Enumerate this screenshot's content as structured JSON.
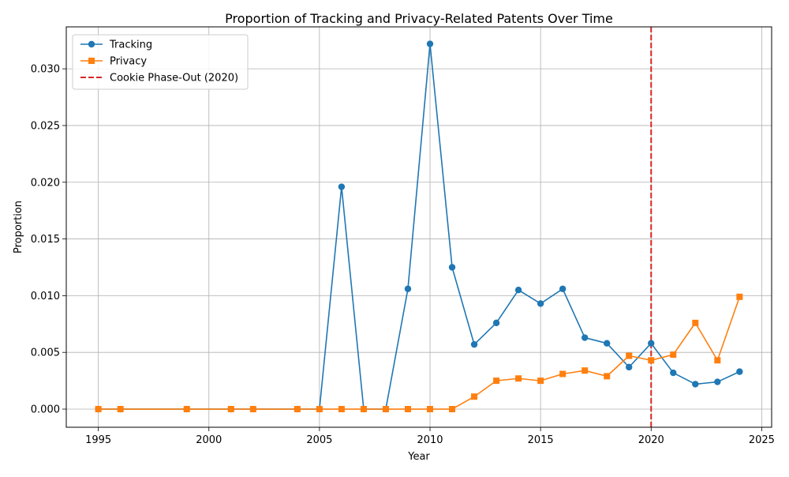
{
  "chart_data": {
    "type": "line",
    "title": "Proportion of Tracking and Privacy-Related Patents Over Time",
    "xlabel": "Year",
    "ylabel": "Proportion",
    "xlim": [
      1993.55,
      2025.45
    ],
    "ylim": [
      -0.0016,
      0.0337
    ],
    "xticks": [
      1995,
      2000,
      2005,
      2010,
      2015,
      2020,
      2025
    ],
    "xtick_labels": [
      "1995",
      "2000",
      "2005",
      "2010",
      "2015",
      "2020",
      "2025"
    ],
    "yticks": [
      0.0,
      0.005,
      0.01,
      0.015,
      0.02,
      0.025,
      0.03
    ],
    "ytick_labels": [
      "0.000",
      "0.005",
      "0.010",
      "0.015",
      "0.020",
      "0.025",
      "0.030"
    ],
    "grid": true,
    "legend_position": "top-left",
    "x": [
      1995,
      1996,
      1999,
      2001,
      2002,
      2004,
      2005,
      2006,
      2007,
      2008,
      2009,
      2010,
      2011,
      2012,
      2013,
      2014,
      2015,
      2016,
      2017,
      2018,
      2019,
      2020,
      2021,
      2022,
      2023,
      2024
    ],
    "series": [
      {
        "name": "Tracking",
        "color": "#1f77b4",
        "marker": "circle",
        "values": [
          0,
          0,
          0,
          0,
          0,
          0,
          0,
          0.0196,
          0,
          0,
          0.0106,
          0.0322,
          0.0125,
          0.0057,
          0.0076,
          0.0105,
          0.0093,
          0.0106,
          0.0063,
          0.0058,
          0.0037,
          0.0058,
          0.0032,
          0.0022,
          0.0024,
          0.0033
        ]
      },
      {
        "name": "Privacy",
        "color": "#ff7f0e",
        "marker": "square",
        "values": [
          0,
          0,
          0,
          0,
          0,
          0,
          0,
          0,
          0,
          0,
          0,
          0,
          0,
          0.0011,
          0.0025,
          0.0027,
          0.0025,
          0.0031,
          0.0034,
          0.0029,
          0.0047,
          0.0043,
          0.0048,
          0.0076,
          0.0043,
          0.0099
        ]
      }
    ],
    "reference_lines": [
      {
        "name": "Cookie Phase-Out (2020)",
        "x": 2020,
        "color": "#d62728",
        "style": "dashed"
      }
    ]
  }
}
